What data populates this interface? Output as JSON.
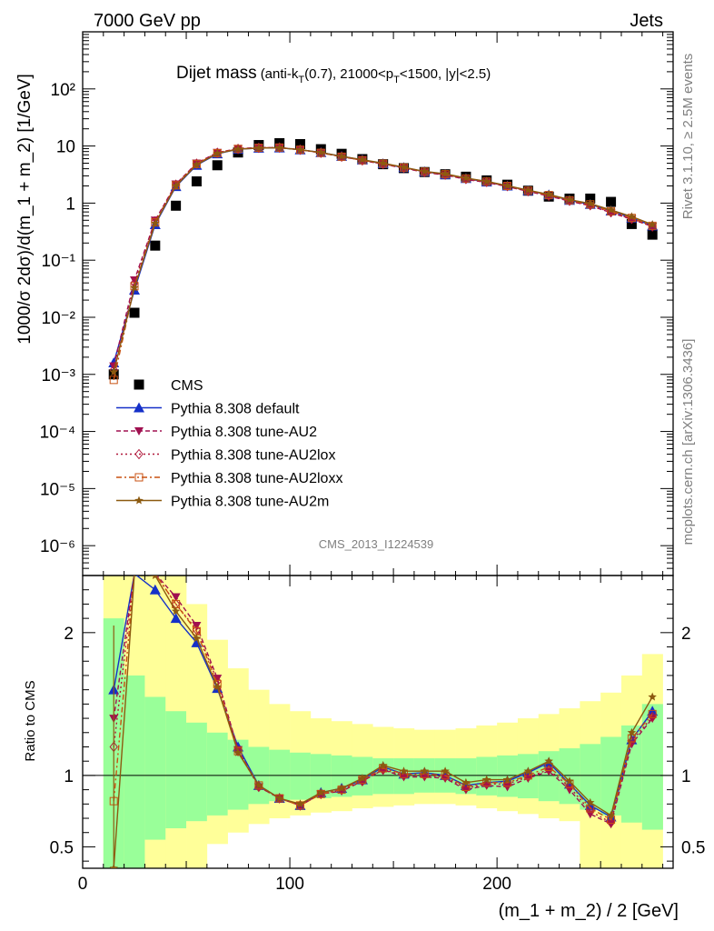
{
  "header": {
    "left": "7000 GeV pp",
    "right": "Jets"
  },
  "plot_title": {
    "main": "Dijet mass",
    "sub_pre": "(anti-k",
    "sub_t": "T",
    "sub_mid": "(0.7), 21000<p",
    "sub_t2": "T",
    "sub_post": "<1500, |y|<2.5)"
  },
  "side_labels": {
    "rivet": "Rivet 3.1.10, ≥ 2.5M events",
    "mcplots": "mcplots.cern.ch [arXiv:1306.3436]"
  },
  "analysis_id": "CMS_2013_I1224539",
  "colors": {
    "cms": "#000000",
    "default": "#1530c8",
    "au2": "#a01050",
    "au2lox": "#b0183a",
    "au2loxx": "#c85010",
    "au2m": "#8c5a10",
    "band_outer": "#ffff99",
    "band_inner": "#99ff99"
  },
  "chart_data": [
    {
      "type": "scatter",
      "panel": "main",
      "xlim": [
        0,
        285
      ],
      "ylim": [
        3e-07,
        1000
      ],
      "yscale": "log",
      "ylabel": "1000/σ 2dσ)/d(m_1 + m_2) [1/GeV]",
      "ytick_labels": [
        "10⁻⁶",
        "10⁻⁵",
        "10⁻⁴",
        "10⁻³",
        "10⁻²",
        "10⁻¹",
        "1",
        "10",
        "10²"
      ],
      "legend_position": "middle-left",
      "x": [
        15,
        25,
        35,
        45,
        55,
        65,
        75,
        85,
        95,
        105,
        115,
        125,
        135,
        145,
        155,
        165,
        175,
        185,
        195,
        205,
        215,
        225,
        235,
        245,
        255,
        265,
        275
      ],
      "series": [
        {
          "name": "CMS",
          "key": "cms",
          "values": [
            0.001,
            0.012,
            0.18,
            0.9,
            2.4,
            4.6,
            7.7,
            10.4,
            11.2,
            10.8,
            8.8,
            7.3,
            5.9,
            4.8,
            4.1,
            3.5,
            3.2,
            2.9,
            2.5,
            2.1,
            1.65,
            1.3,
            1.2,
            1.2,
            1.05,
            0.43,
            0.28
          ]
        },
        {
          "name": "Pythia 8.308 default",
          "key": "default",
          "values": [
            0.0016,
            0.03,
            0.42,
            1.95,
            4.6,
            7.3,
            8.8,
            9.2,
            9.3,
            8.6,
            7.7,
            6.6,
            5.7,
            4.9,
            4.2,
            3.55,
            3.15,
            2.7,
            2.35,
            2.0,
            1.65,
            1.4,
            1.12,
            0.95,
            0.73,
            0.55,
            0.4
          ]
        },
        {
          "name": "Pythia 8.308 tune-AU2",
          "key": "au2",
          "values": [
            0.0014,
            0.045,
            0.5,
            2.15,
            5.0,
            7.7,
            9.0,
            9.4,
            9.4,
            8.6,
            7.6,
            6.5,
            5.6,
            4.8,
            4.1,
            3.45,
            3.1,
            2.6,
            2.3,
            1.95,
            1.6,
            1.33,
            1.08,
            0.9,
            0.68,
            0.52,
            0.39
          ]
        },
        {
          "name": "Pythia 8.308 tune-AU2lox",
          "key": "au2lox",
          "values": [
            0.0012,
            0.04,
            0.48,
            2.1,
            4.9,
            7.6,
            8.9,
            9.3,
            9.4,
            8.6,
            7.6,
            6.5,
            5.6,
            4.85,
            4.15,
            3.5,
            3.15,
            2.65,
            2.35,
            1.98,
            1.62,
            1.35,
            1.1,
            0.92,
            0.69,
            0.53,
            0.39
          ]
        },
        {
          "name": "Pythia 8.308 tune-AU2loxx",
          "key": "au2loxx",
          "values": [
            0.0008,
            0.035,
            0.46,
            2.05,
            4.85,
            7.5,
            8.9,
            9.3,
            9.4,
            8.6,
            7.6,
            6.5,
            5.65,
            4.9,
            4.2,
            3.55,
            3.2,
            2.7,
            2.38,
            2.0,
            1.65,
            1.38,
            1.12,
            0.95,
            0.72,
            0.55,
            0.4
          ]
        },
        {
          "name": "Pythia 8.308 tune-AU2m",
          "key": "au2m",
          "values": [
            0.0011,
            0.033,
            0.44,
            2.0,
            4.7,
            7.4,
            8.8,
            9.2,
            9.3,
            8.6,
            7.7,
            6.6,
            5.75,
            5.0,
            4.25,
            3.6,
            3.25,
            2.75,
            2.4,
            2.02,
            1.68,
            1.42,
            1.15,
            0.98,
            0.76,
            0.58,
            0.42
          ]
        }
      ]
    },
    {
      "type": "line",
      "panel": "ratio",
      "xlim": [
        0,
        285
      ],
      "ylim": [
        0.35,
        2.4
      ],
      "ylabel": "Ratio to CMS",
      "xlabel": "(m_1 + m_2) / 2 [GeV]",
      "xtick_labels": [
        "0",
        "100",
        "200"
      ],
      "xticks": [
        0,
        100,
        200
      ],
      "ytick_labels": [
        "0.5",
        "1",
        "2"
      ],
      "yticks": [
        0.5,
        1,
        2
      ],
      "bin_edges": [
        10,
        20,
        30,
        40,
        50,
        60,
        70,
        80,
        90,
        100,
        110,
        120,
        130,
        140,
        150,
        160,
        170,
        180,
        190,
        200,
        210,
        220,
        230,
        240,
        250,
        260,
        270,
        280
      ],
      "band_outer": {
        "lo": [
          0.3,
          0.3,
          0.3,
          0.3,
          0.3,
          0.52,
          0.6,
          0.66,
          0.7,
          0.72,
          0.74,
          0.75,
          0.77,
          0.78,
          0.79,
          0.8,
          0.8,
          0.79,
          0.77,
          0.75,
          0.73,
          0.7,
          0.68,
          0.3,
          0.3,
          0.3,
          0.3
        ],
        "hi": [
          2.4,
          2.4,
          2.4,
          2.4,
          2.2,
          1.95,
          1.75,
          1.6,
          1.5,
          1.45,
          1.4,
          1.38,
          1.36,
          1.34,
          1.33,
          1.32,
          1.32,
          1.33,
          1.35,
          1.37,
          1.4,
          1.43,
          1.47,
          1.52,
          1.58,
          1.7,
          1.85
        ]
      },
      "band_inner": {
        "lo": [
          0.3,
          0.35,
          0.55,
          0.63,
          0.68,
          0.72,
          0.76,
          0.8,
          0.82,
          0.83,
          0.84,
          0.85,
          0.86,
          0.87,
          0.87,
          0.88,
          0.88,
          0.87,
          0.86,
          0.85,
          0.84,
          0.82,
          0.8,
          0.76,
          0.72,
          0.67,
          0.62
        ],
        "hi": [
          2.1,
          1.7,
          1.55,
          1.45,
          1.37,
          1.3,
          1.25,
          1.2,
          1.18,
          1.16,
          1.15,
          1.14,
          1.13,
          1.12,
          1.12,
          1.12,
          1.12,
          1.12,
          1.13,
          1.14,
          1.15,
          1.17,
          1.19,
          1.22,
          1.27,
          1.35,
          1.5
        ]
      },
      "x": [
        15,
        25,
        35,
        45,
        55,
        65,
        75,
        85,
        95,
        105,
        115,
        125,
        135,
        145,
        155,
        165,
        175,
        185,
        195,
        205,
        215,
        225,
        235,
        245,
        255,
        265,
        275
      ],
      "series": [
        {
          "name": "Pythia 8.308 default",
          "key": "default",
          "values": [
            1.6,
            2.5,
            2.3,
            2.1,
            1.93,
            1.61,
            1.2,
            0.93,
            0.84,
            0.79,
            0.88,
            0.91,
            0.97,
            1.06,
            1.01,
            1.02,
            1.0,
            0.93,
            0.95,
            0.96,
            1.02,
            1.09,
            0.94,
            0.79,
            0.71,
            1.25,
            1.45
          ]
        },
        {
          "name": "Pythia 8.308 tune-AU2",
          "key": "au2",
          "values": [
            1.4,
            2.8,
            2.5,
            2.25,
            2.05,
            1.68,
            1.18,
            0.92,
            0.84,
            0.79,
            0.87,
            0.89,
            0.96,
            1.04,
            0.99,
            0.99,
            0.98,
            0.9,
            0.93,
            0.92,
            0.98,
            1.03,
            0.9,
            0.73,
            0.66,
            1.22,
            1.4
          ]
        },
        {
          "name": "Pythia 8.308 tune-AU2lox",
          "key": "au2lox",
          "values": [
            1.2,
            2.7,
            2.45,
            2.2,
            2.02,
            1.66,
            1.17,
            0.92,
            0.84,
            0.79,
            0.87,
            0.9,
            0.96,
            1.04,
            1.0,
            1.0,
            0.99,
            0.91,
            0.94,
            0.94,
            0.99,
            1.04,
            0.92,
            0.75,
            0.67,
            1.24,
            1.41
          ]
        },
        {
          "name": "Pythia 8.308 tune-AU2loxx",
          "key": "au2loxx",
          "values": [
            0.82,
            2.6,
            2.42,
            2.2,
            2.01,
            1.64,
            1.17,
            0.93,
            0.84,
            0.79,
            0.87,
            0.9,
            0.97,
            1.05,
            1.01,
            1.01,
            1.0,
            0.92,
            0.95,
            0.95,
            1.0,
            1.06,
            0.94,
            0.77,
            0.69,
            1.26,
            1.43
          ]
        },
        {
          "name": "Pythia 8.308 tune-AU2m",
          "key": "au2m",
          "values": [
            0.35,
            2.8,
            2.4,
            2.15,
            1.96,
            1.62,
            1.16,
            0.93,
            0.84,
            0.8,
            0.88,
            0.91,
            0.98,
            1.07,
            1.03,
            1.03,
            1.03,
            0.95,
            0.97,
            0.97,
            1.03,
            1.1,
            0.96,
            0.81,
            0.72,
            1.3,
            1.55
          ]
        }
      ]
    }
  ]
}
